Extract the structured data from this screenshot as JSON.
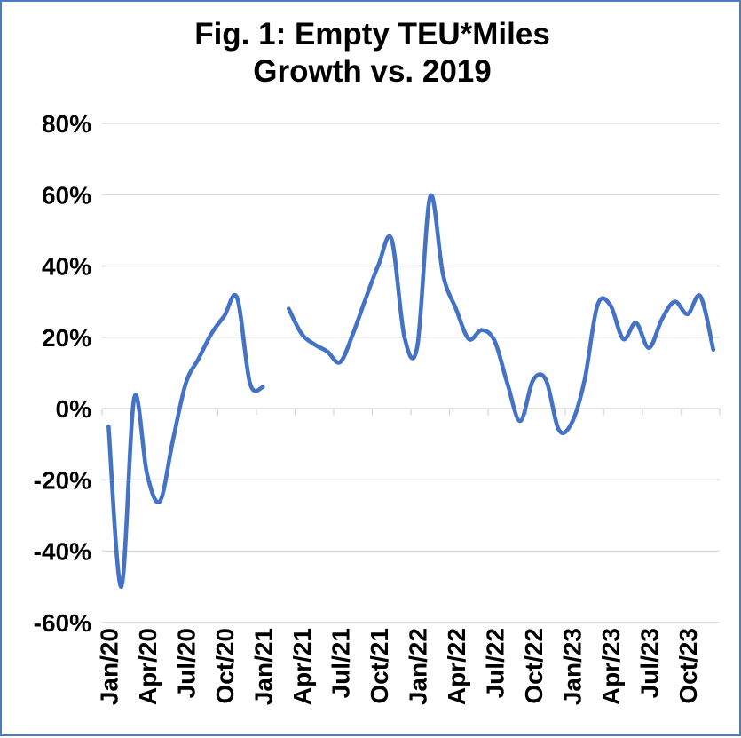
{
  "title": {
    "line1": "Fig. 1: Empty TEU*Miles",
    "line2": "Growth vs. 2019"
  },
  "colors": {
    "line": "#4472C4",
    "frame_border": "#4a7dbd",
    "gridline": "#D9D9D9",
    "axis_text": "#000000",
    "background": "#FFFFFF"
  },
  "chart_data": {
    "type": "line",
    "title": "Fig. 1: Empty TEU*Miles Growth vs. 2019",
    "series_name": "Empty TEU*Miles growth vs. 2019",
    "smoothed": true,
    "legend": "none",
    "grid": "horizontal",
    "ylim": [
      -60,
      80
    ],
    "y_unit": "%",
    "y_tick_values": [
      80,
      60,
      40,
      20,
      0,
      -20,
      -40,
      -60
    ],
    "y_tick_labels": [
      "80%",
      "60%",
      "40%",
      "20%",
      "0%",
      "-20%",
      "-40%",
      "-60%"
    ],
    "x_tick_every": 3,
    "x_tick_labels": [
      "Jan/20",
      "Apr/20",
      "Jul/20",
      "Oct/20",
      "Jan/21",
      "Apr/21",
      "Jul/21",
      "Oct/21",
      "Jan/22",
      "Apr/22",
      "Jul/22",
      "Oct/22",
      "Jan/23",
      "Apr/23",
      "Jul/23",
      "Oct/23"
    ],
    "x": [
      "Jan/20",
      "Feb/20",
      "Mar/20",
      "Apr/20",
      "May/20",
      "Jun/20",
      "Jul/20",
      "Aug/20",
      "Sep/20",
      "Oct/20",
      "Nov/20",
      "Dec/20",
      "Jan/21",
      "Feb/21",
      "Mar/21",
      "Apr/21",
      "May/21",
      "Jun/21",
      "Jul/21",
      "Aug/21",
      "Sep/21",
      "Oct/21",
      "Nov/21",
      "Dec/21",
      "Jan/22",
      "Feb/22",
      "Mar/22",
      "Apr/22",
      "May/22",
      "Jun/22",
      "Jul/22",
      "Aug/22",
      "Sep/22",
      "Oct/22",
      "Nov/22",
      "Dec/22",
      "Jan/23",
      "Feb/23",
      "Mar/23",
      "Apr/23",
      "May/23",
      "Jun/23",
      "Jul/23",
      "Aug/23",
      "Sep/23",
      "Oct/23",
      "Nov/23",
      "Dec/23"
    ],
    "values": [
      -5,
      -50,
      3,
      -18.5,
      -26,
      -9,
      7,
      14,
      21,
      26,
      31,
      7,
      6,
      null,
      28,
      21,
      18,
      16,
      13,
      21,
      31,
      40.5,
      47.5,
      20,
      17.5,
      59.5,
      37.5,
      28,
      19.5,
      22,
      19,
      7,
      -3.5,
      8,
      8,
      -6,
      -4,
      8,
      29,
      29,
      19.5,
      24,
      17,
      25,
      30,
      26.5,
      31.5,
      16.5
    ],
    "missing_months": [
      "Feb/21"
    ]
  }
}
